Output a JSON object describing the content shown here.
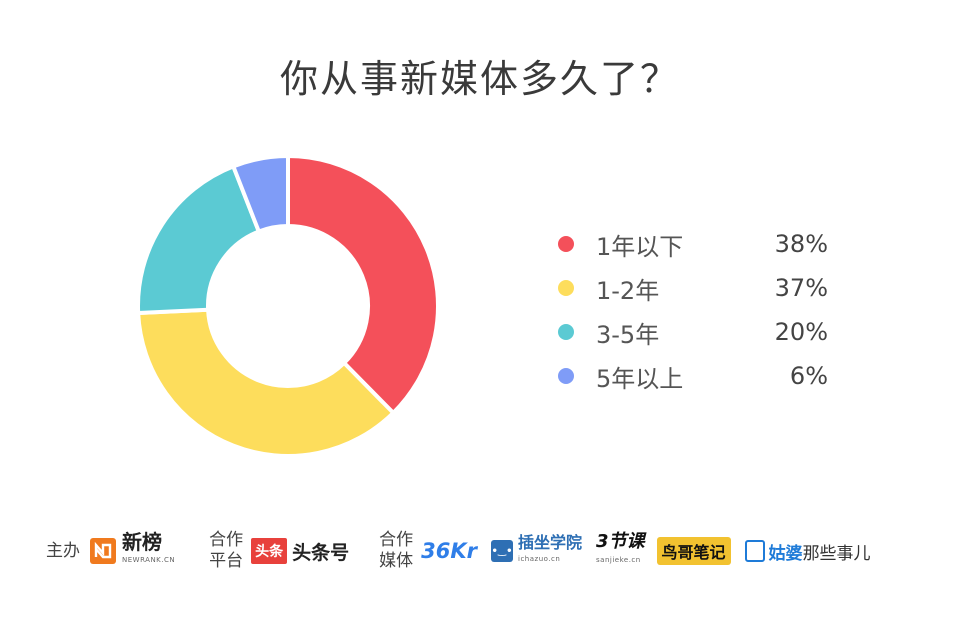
{
  "title": "你从事新媒体多久了？",
  "chart_data": {
    "type": "pie",
    "donut": true,
    "categories": [
      "1年以下",
      "1-2年",
      "3-5年",
      "5年以上"
    ],
    "values": [
      38,
      37,
      20,
      6
    ],
    "value_labels": [
      "38%",
      "37%",
      "20%",
      "6%"
    ],
    "colors": [
      "#F4505A",
      "#FDDD5C",
      "#5BCAD3",
      "#7F9CF7"
    ],
    "legend_position": "right"
  },
  "footer": {
    "host_label": "主办",
    "host_logo": {
      "text": "新榜",
      "sub": "NEWRANK.CN",
      "icon": "newrank-logo-icon",
      "color": "#F07A1E"
    },
    "platform_label_1": "合作",
    "platform_label_2": "平台",
    "platform_logo": {
      "badge": "头条",
      "text": "头条号",
      "color": "#E8413C"
    },
    "media_label_1": "合作",
    "media_label_2": "媒体",
    "media_logos": [
      {
        "text": "36Kr",
        "icon": "36kr-logo-icon",
        "color": "#2F7EE8"
      },
      {
        "text": "插坐学院",
        "sub": "ichazuo.cn",
        "icon": "chazuo-logo-icon",
        "color": "#2E6FB4"
      },
      {
        "text": "3节课",
        "sub": "sanjieke.cn",
        "icon": "sanjieke-logo-icon",
        "color": "#111111"
      },
      {
        "text": "鸟哥笔记",
        "icon": "niaoge-logo-icon",
        "color": "#F2C230"
      },
      {
        "text": "姑婆",
        "text2": "那些事儿",
        "icon": "gupo-logo-icon",
        "color": "#1E7BD8"
      }
    ]
  }
}
